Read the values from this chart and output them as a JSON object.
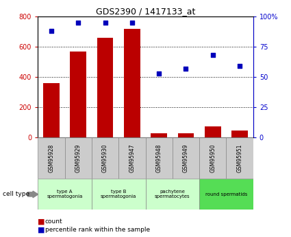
{
  "title": "GDS2390 / 1417133_at",
  "samples": [
    "GSM95928",
    "GSM95929",
    "GSM95930",
    "GSM95947",
    "GSM95948",
    "GSM95949",
    "GSM95950",
    "GSM95951"
  ],
  "counts": [
    360,
    570,
    660,
    720,
    30,
    30,
    75,
    45
  ],
  "percentiles": [
    88,
    95,
    95,
    95,
    53,
    57,
    68,
    59
  ],
  "cell_types": [
    {
      "label": "type A\nspermatogonia",
      "start": 0,
      "end": 2,
      "color": "#ccffcc"
    },
    {
      "label": "type B\nspermatogonia",
      "start": 2,
      "end": 4,
      "color": "#ccffcc"
    },
    {
      "label": "pachytene\nspermatocytes",
      "start": 4,
      "end": 6,
      "color": "#ccffcc"
    },
    {
      "label": "round spermatids",
      "start": 6,
      "end": 8,
      "color": "#55dd55"
    }
  ],
  "bar_color": "#bb0000",
  "dot_color": "#0000bb",
  "left_axis_color": "#cc0000",
  "right_axis_color": "#0000cc",
  "ylim_left": [
    0,
    800
  ],
  "ylim_right": [
    0,
    100
  ],
  "yticks_left": [
    0,
    200,
    400,
    600,
    800
  ],
  "yticks_right": [
    0,
    25,
    50,
    75,
    100
  ],
  "ytick_labels_right": [
    "0",
    "25",
    "50",
    "75",
    "100%"
  ],
  "background_color": "#ffffff",
  "sample_box_color": "#cccccc",
  "figsize": [
    4.25,
    3.45
  ],
  "dpi": 100
}
